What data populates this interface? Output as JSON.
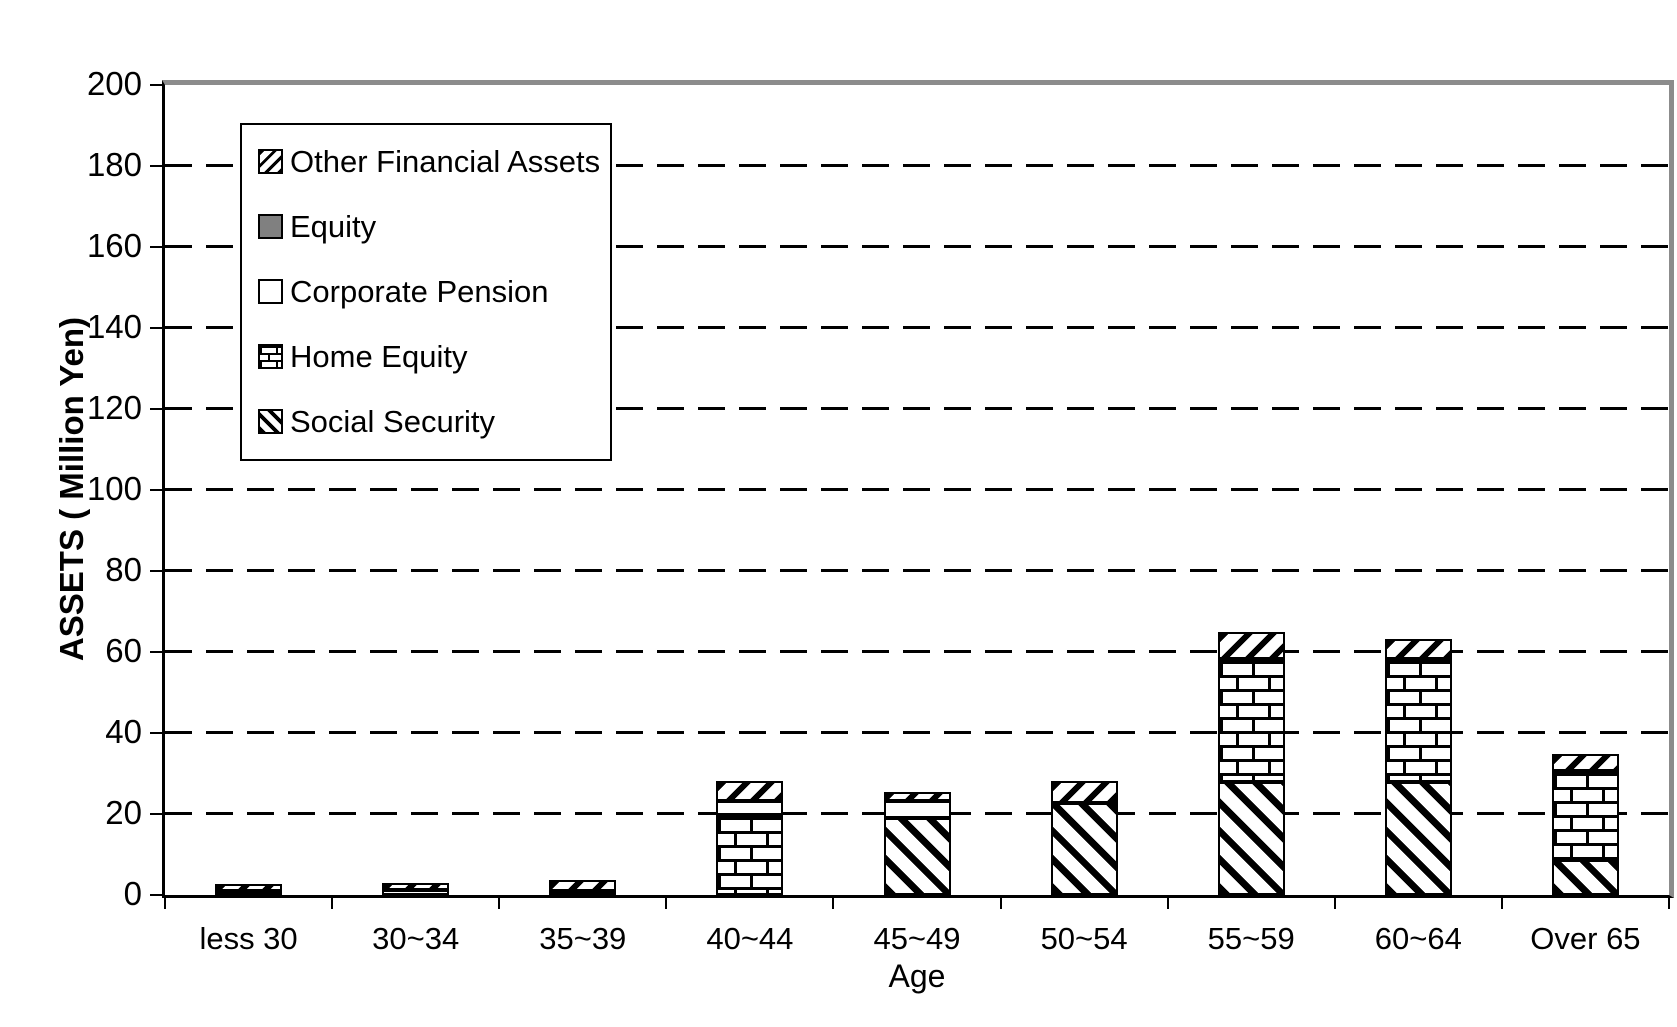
{
  "chart_data": {
    "type": "bar",
    "subtype": "stacked-vertical",
    "title": "",
    "xlabel": "Age",
    "ylabel": "ASSETS ( Million Yen)",
    "ylim": [
      0,
      200
    ],
    "ytick_step": 20,
    "grid": "dashed-horizontal",
    "legend_position": "upper-left-inside",
    "categories": [
      "less 30",
      "30~34",
      "35~39",
      "40~44",
      "45~49",
      "50~54",
      "55~59",
      "60~64",
      "Over 65"
    ],
    "stack_order": "bottom-to-top",
    "series": [
      {
        "name": "Social Security",
        "pattern": "diagonal-backslash-hatch",
        "values": [
          0,
          0,
          0,
          0,
          19.0,
          22.6,
          28.0,
          28.0,
          8.7
        ]
      },
      {
        "name": "Home Equity",
        "pattern": "brick",
        "values": [
          0,
          0,
          0,
          19.8,
          0,
          0,
          30.2,
          30.3,
          22.0
        ]
      },
      {
        "name": "Corporate Pension",
        "pattern": "white",
        "values": [
          0.3,
          1.3,
          1.0,
          3.3,
          4.1,
          0,
          0,
          0,
          0
        ]
      },
      {
        "name": "Equity",
        "pattern": "solid-gray",
        "values": [
          0,
          0,
          0,
          0,
          0,
          0,
          0,
          0,
          0
        ]
      },
      {
        "name": "Other Financial Assets",
        "pattern": "diagonal-slash-hatch",
        "values": [
          1.8,
          1.7,
          2.7,
          5.0,
          2.3,
          5.6,
          6.8,
          4.8,
          4.0
        ]
      }
    ],
    "totals": [
      2.1,
      3.0,
      3.7,
      28.1,
      25.4,
      28.2,
      65.0,
      63.1,
      34.7
    ],
    "legend": [
      {
        "label": "Other Financial Assets",
        "pattern": "diagonal-slash-hatch"
      },
      {
        "label": "Equity",
        "pattern": "solid-gray",
        "color": "#808080"
      },
      {
        "label": "Corporate Pension",
        "pattern": "white"
      },
      {
        "label": "Home Equity",
        "pattern": "brick"
      },
      {
        "label": "Social Security",
        "pattern": "diagonal-backslash-hatch"
      }
    ],
    "axis_colors": {
      "frame_top_right": "#8c8c8c",
      "axis_lines": "#000000"
    }
  }
}
